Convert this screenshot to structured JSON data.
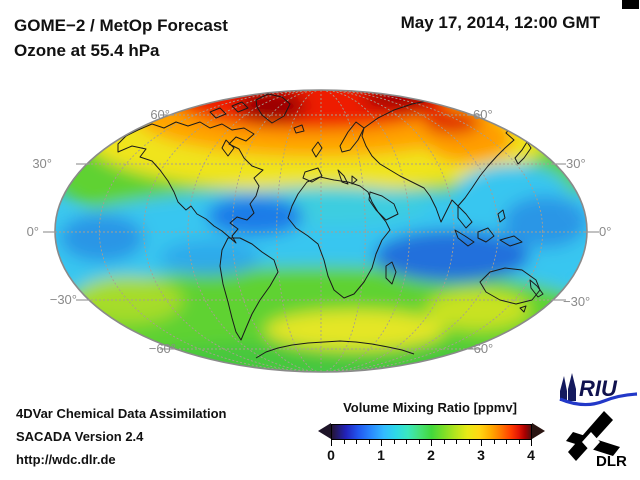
{
  "header": {
    "title_line1": "GOME−2 / MetOp Forecast",
    "title_line2": "Ozone at 55.4 hPa",
    "datetime": "May 17, 2014, 12:00 GMT"
  },
  "map": {
    "lat_labels_left": [
      "60°",
      "30°",
      "0°",
      "−30°",
      "−60°"
    ],
    "lat_labels_right": [
      "60°",
      "30°",
      "0°",
      "−30°",
      "−60°"
    ]
  },
  "colorbar": {
    "title": "Volume Mixing Ratio [ppmv]",
    "tick_labels": [
      "0",
      "1",
      "2",
      "3",
      "4"
    ],
    "minor_ticks_per_interval": 3
  },
  "footer": {
    "line1": "4DVar Chemical Data Assimilation",
    "line2": "SACADA Version 2.4",
    "line3": "http://wdc.dlr.de"
  },
  "logos": {
    "riu_text": "RIU",
    "dlr_text": "DLR"
  },
  "chart_data": {
    "type": "heatmap",
    "title": "GOME−2 / MetOp Forecast — Ozone at 55.4 hPa",
    "timestamp": "May 17, 2014, 12:00 GMT",
    "projection": "Mollweide world map, 0° central meridian",
    "colorbar": {
      "label": "Volume Mixing Ratio [ppmv]",
      "range": [
        0,
        4
      ],
      "ticks": [
        0,
        1,
        2,
        3,
        4
      ],
      "minor_tick_step": 0.25,
      "palette_hint": [
        "#241536",
        "#2222bb",
        "#2a8cff",
        "#2ed8e8",
        "#42d83c",
        "#b4e41e",
        "#e8ea16",
        "#ffaa00",
        "#ff3c00",
        "#a80000",
        "#551010"
      ]
    },
    "graticule": {
      "parallels_deg": [
        60,
        30,
        0,
        -30,
        -60
      ],
      "meridian_spacing_deg": 30,
      "grid_on": true
    },
    "legend_position": "bottom-center",
    "field_summary": [
      {
        "region": "Arctic / north polar cap (>60°N)",
        "approx_ppmv": 3.6
      },
      {
        "region": "Siberian high-latitude tongue",
        "approx_ppmv": 3.2
      },
      {
        "region": "Northern mid-latitudes (30–60°N)",
        "approx_ppmv": 2.5
      },
      {
        "region": "Tropics (30°S–30°N)",
        "approx_ppmv": 1.3
      },
      {
        "region": "Subtropical Atlantic / Indian Ocean minima",
        "approx_ppmv": 0.9
      },
      {
        "region": "Southern mid-latitudes (30–60°S)",
        "approx_ppmv": 2.3
      },
      {
        "region": "Antarctic / south polar region",
        "approx_ppmv": 2.0
      }
    ]
  }
}
